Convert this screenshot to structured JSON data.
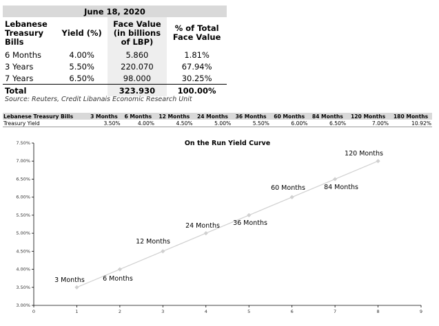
{
  "table": {
    "date": "June 18, 2020",
    "headers": {
      "col1": [
        "Lebanese",
        "Treasury",
        "Bills"
      ],
      "col2": [
        "Yield (%)"
      ],
      "col3": [
        "Face Value",
        "(in billions",
        "of LBP)"
      ],
      "col4": [
        "% of Total",
        "Face Value"
      ]
    },
    "rows": [
      {
        "tenor": "6 Months",
        "yield": "4.00%",
        "face": "5.860",
        "pct": "1.81%"
      },
      {
        "tenor": "3 Years",
        "yield": "5.50%",
        "face": "220.070",
        "pct": "67.94%"
      },
      {
        "tenor": "7 Years",
        "yield": "6.50%",
        "face": "98.000",
        "pct": "30.25%"
      }
    ],
    "total": {
      "label": "Total",
      "face": "323.930",
      "pct": "100.00%"
    },
    "source": "Source: Reuters, Credit Libanais Economic Research Unit"
  },
  "strip": {
    "header": [
      "Lebanese Treasury Bills",
      "3 Months",
      "6 Months",
      "12 Months",
      "24 Months",
      "36 Months",
      "60 Months",
      "84 Months",
      "120 Months",
      "180 Months"
    ],
    "values": [
      "Treasury Yield",
      "3.50%",
      "4.00%",
      "4.50%",
      "5.00%",
      "5.50%",
      "6.00%",
      "6.50%",
      "7.00%",
      "10.92%"
    ]
  },
  "chart_data": {
    "type": "line",
    "title": "On the Run Yield Curve",
    "x": [
      1,
      2,
      3,
      4,
      5,
      6,
      7,
      8
    ],
    "y": [
      3.5,
      4.0,
      4.5,
      5.0,
      5.5,
      6.0,
      6.5,
      7.0
    ],
    "point_labels": [
      "3 Months",
      "6 Months",
      "12 Months",
      "24 Months",
      "36 Months",
      "60 Months",
      "84 Months",
      "120 Months"
    ],
    "xlim": [
      0,
      9
    ],
    "ylim": [
      3.0,
      7.5
    ],
    "xticks": [
      "0",
      "1",
      "2",
      "3",
      "4",
      "5",
      "6",
      "7",
      "8",
      "9"
    ],
    "yticks": [
      "3.00%",
      "3.50%",
      "4.00%",
      "4.50%",
      "5.00%",
      "5.50%",
      "6.00%",
      "6.50%",
      "7.00%",
      "7.50%"
    ],
    "grid": false,
    "line_color": "#d0d0d0",
    "marker_color": "#d0d0d0"
  }
}
